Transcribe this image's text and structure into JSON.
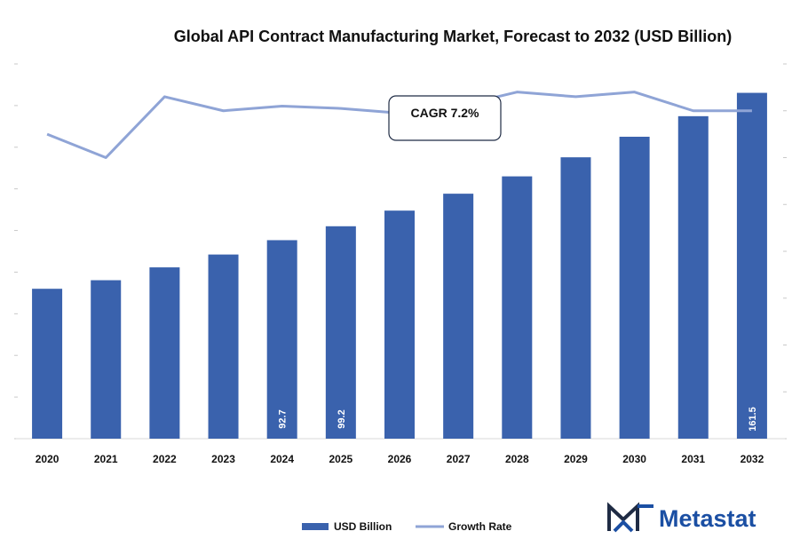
{
  "chart_data": {
    "type": "bar",
    "title": "Global API Contract Manufacturing Market, Forecast to 2032 (USD Billion)",
    "categories": [
      "2020",
      "2021",
      "2022",
      "2023",
      "2024",
      "2025",
      "2026",
      "2027",
      "2028",
      "2029",
      "2030",
      "2031",
      "2032"
    ],
    "series": [
      {
        "name": "USD Billion",
        "type": "bar",
        "axis": "left",
        "values": [
          70.0,
          74.0,
          80.0,
          86.0,
          92.7,
          99.2,
          106.5,
          114.4,
          122.5,
          131.4,
          141.0,
          150.6,
          161.5
        ]
      },
      {
        "name": "Growth Rate",
        "type": "line",
        "axis": "right",
        "values": [
          6.5,
          6.0,
          7.3,
          7.0,
          7.1,
          7.05,
          6.95,
          7.1,
          7.4,
          7.3,
          7.4,
          7.0,
          7.0
        ]
      }
    ],
    "data_labels": [
      {
        "index": 4,
        "text": "92.7"
      },
      {
        "index": 5,
        "text": "99.2"
      },
      {
        "index": 12,
        "text": "161.5"
      }
    ],
    "left_ylim": [
      0,
      175
    ],
    "right_ylim": [
      0,
      8
    ],
    "xlabel": "",
    "ylabel": "",
    "annotation": "CAGR 7.2%",
    "legend_position": "bottom-center",
    "grid": false,
    "colors": {
      "bar": "#3a62ad",
      "line": "#8fa4d6",
      "text": "#111111"
    }
  },
  "brand": {
    "name": "Metastat",
    "logo_icon": "metastat-m-logo-icon",
    "color": "#1b4fa3"
  }
}
